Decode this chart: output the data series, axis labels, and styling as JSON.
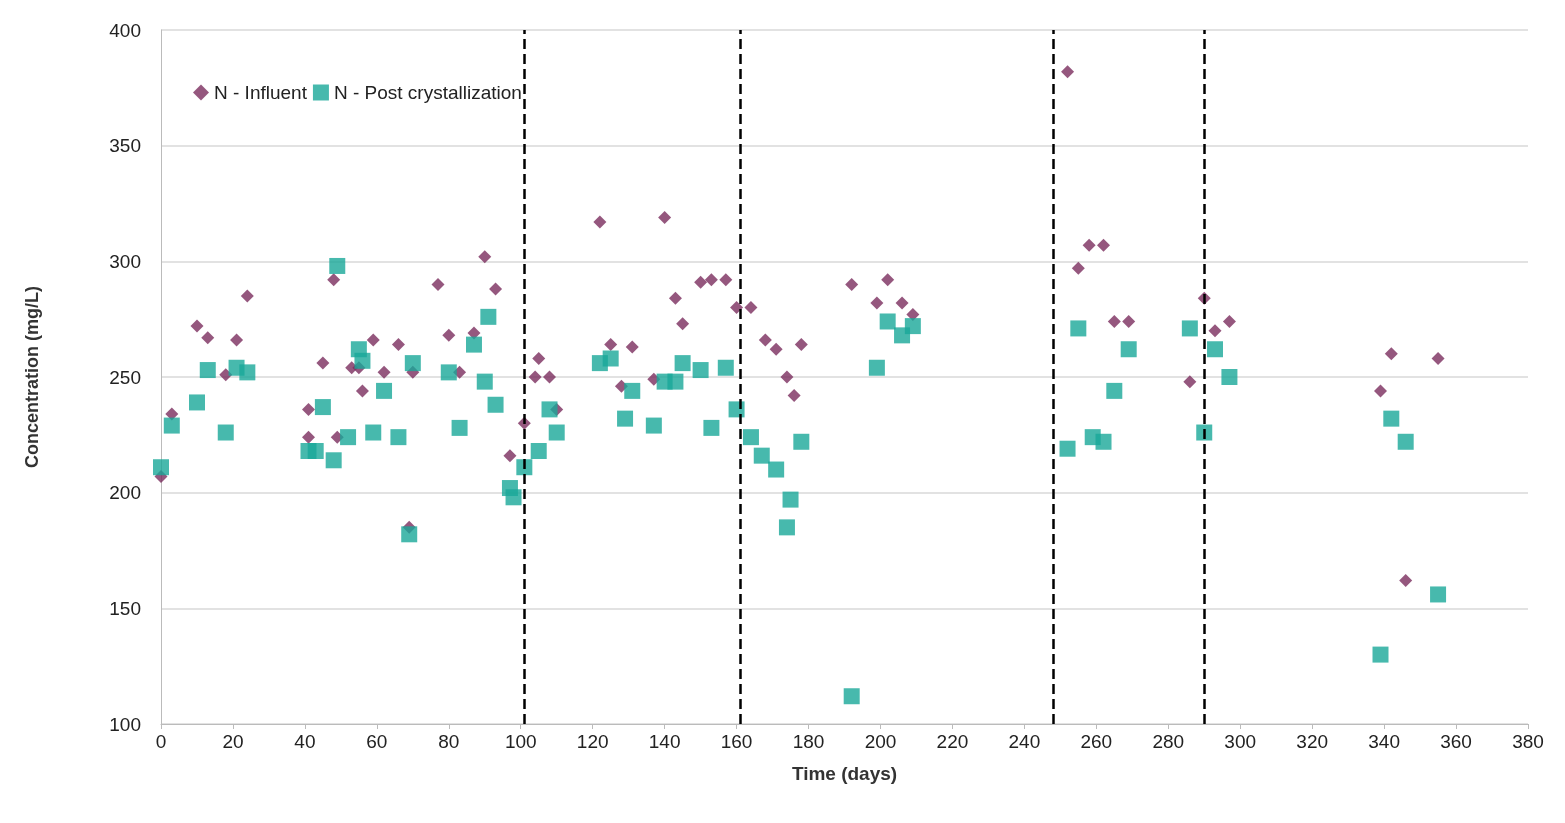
{
  "chart_data": {
    "type": "scatter",
    "xlabel": "Time (days)",
    "ylabel": "Concentration (mg/L)",
    "xlim": [
      0,
      380
    ],
    "xticks": [
      0,
      20,
      40,
      60,
      80,
      100,
      120,
      140,
      160,
      180,
      200,
      220,
      240,
      260,
      280,
      300,
      320,
      340,
      360,
      380
    ],
    "ylim": [
      100,
      400
    ],
    "yticks": [
      100,
      150,
      200,
      250,
      300,
      350,
      400
    ],
    "grid": "y",
    "legend": "top left",
    "series": [
      {
        "name": "N - Influent",
        "color": "#7b2d5e",
        "marker": "diamond",
        "x": [
          0,
          3,
          10,
          13,
          18,
          21,
          24,
          41,
          41,
          45,
          48,
          49,
          53,
          55,
          56,
          59,
          62,
          66,
          69,
          70,
          77,
          80,
          83,
          87,
          90,
          93,
          97,
          101,
          104,
          105,
          108,
          110,
          122,
          125,
          128,
          131,
          137,
          140,
          143,
          145,
          150,
          153,
          157,
          160,
          164,
          168,
          171,
          174,
          176,
          178,
          192,
          199,
          202,
          206,
          209,
          252,
          255,
          258,
          262,
          265,
          269,
          286,
          290,
          293,
          297,
          339,
          342,
          346,
          355
        ],
        "values": [
          207,
          234,
          272,
          267,
          251,
          266,
          285,
          236,
          224,
          256,
          292,
          224,
          254,
          254,
          244,
          266,
          252,
          264,
          185,
          252,
          290,
          268,
          252,
          269,
          302,
          288,
          216,
          230,
          250,
          258,
          250,
          236,
          317,
          264,
          246,
          263,
          249,
          319,
          284,
          273,
          291,
          292,
          292,
          280,
          280,
          266,
          262,
          250,
          242,
          264,
          290,
          282,
          292,
          282,
          277,
          382,
          297,
          307,
          307,
          274,
          274,
          248,
          284,
          270,
          274,
          244,
          260,
          162,
          258
        ]
      },
      {
        "name": "N - Post crystallization",
        "color": "#19a899",
        "marker": "square",
        "x": [
          0,
          3,
          10,
          13,
          18,
          21,
          24,
          41,
          43,
          45,
          48,
          49,
          52,
          55,
          56,
          59,
          62,
          66,
          69,
          70,
          80,
          83,
          87,
          90,
          91,
          93,
          97,
          98,
          101,
          105,
          108,
          110,
          122,
          125,
          129,
          131,
          137,
          140,
          143,
          145,
          150,
          153,
          157,
          160,
          164,
          167,
          171,
          175,
          174,
          178,
          192,
          199,
          202,
          206,
          209,
          252,
          255,
          259,
          262,
          265,
          269,
          286,
          290,
          293,
          297,
          339,
          342,
          346,
          355
        ],
        "values": [
          211,
          229,
          239,
          253,
          226,
          254,
          252,
          218,
          218,
          237,
          214,
          298,
          224,
          262,
          257,
          226,
          244,
          224,
          182,
          256,
          252,
          228,
          264,
          248,
          276,
          238,
          202,
          198,
          211,
          218,
          236,
          226,
          256,
          258,
          232,
          244,
          229,
          248,
          248,
          256,
          253,
          228,
          254,
          236,
          224,
          216,
          210,
          197,
          185,
          222,
          112,
          254,
          274,
          268,
          272,
          219,
          271,
          224,
          222,
          244,
          262,
          271,
          226,
          262,
          250,
          130,
          232,
          222,
          156
        ]
      }
    ],
    "ref_lines": [
      {
        "axis": "x",
        "value": 101,
        "color": "#000000",
        "line_style": "dashed"
      },
      {
        "axis": "x",
        "value": 161,
        "color": "#000000",
        "line_style": "dashed"
      },
      {
        "axis": "x",
        "value": 248,
        "color": "#000000",
        "line_style": "dashed"
      },
      {
        "axis": "x",
        "value": 290,
        "color": "#000000",
        "line_style": "dashed"
      }
    ]
  }
}
